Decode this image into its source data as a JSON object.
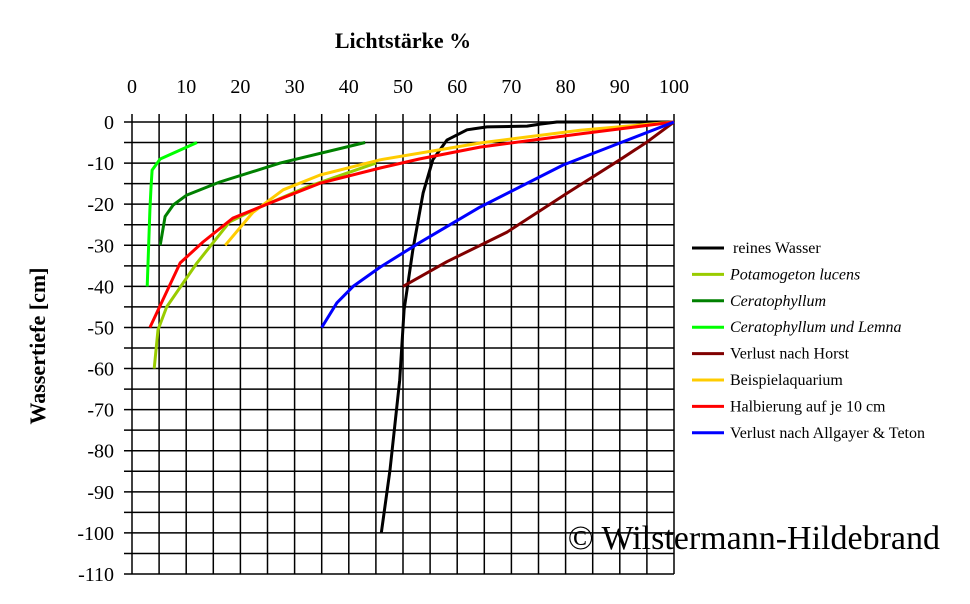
{
  "chart_data": {
    "type": "line",
    "title": "",
    "xlabel": "Lichtstärke %",
    "ylabel": "Wassertiefe [cm]",
    "xlim": [
      0,
      100
    ],
    "ylim": [
      -110,
      0
    ],
    "x_ticks": [
      "0",
      "10",
      "20",
      "30",
      "40",
      "50",
      "60",
      "70",
      "80",
      "90",
      "100"
    ],
    "y_ticks": [
      "0",
      "-10",
      "-20",
      "-30",
      "-40",
      "-50",
      "-60",
      "-70",
      "-80",
      "-90",
      "-100",
      "-110"
    ],
    "x_axis_position": "top",
    "grid": true,
    "legend_position": "right",
    "annotation": "© Wilstermann-Hildebrand",
    "series": [
      {
        "name": "reines Wasser",
        "italic": false,
        "color": "#000000",
        "points": [
          [
            46,
            -100
          ],
          [
            47.6,
            -84.7
          ],
          [
            49.4,
            -62.8
          ],
          [
            50.2,
            -45.7
          ],
          [
            51.8,
            -31.2
          ],
          [
            53.7,
            -17.3
          ],
          [
            55.5,
            -9.2
          ],
          [
            58.1,
            -4.4
          ],
          [
            61.8,
            -1.9
          ],
          [
            65.5,
            -1.2
          ],
          [
            72.9,
            -1
          ],
          [
            75.3,
            -0.5
          ],
          [
            78.4,
            0
          ],
          [
            100,
            0
          ]
        ]
      },
      {
        "name": "Potamogeton lucens",
        "italic": true,
        "color": "#99cc00",
        "points": [
          [
            4.1,
            -60
          ],
          [
            4.8,
            -50.6
          ],
          [
            6.4,
            -45
          ],
          [
            12,
            -34.3
          ],
          [
            18,
            -24.3
          ],
          [
            23.6,
            -20.7
          ],
          [
            32.3,
            -15.8
          ],
          [
            45,
            -10
          ]
        ]
      },
      {
        "name": "Ceratophyllum",
        "italic": true,
        "color": "#008000",
        "points": [
          [
            5.2,
            -30
          ],
          [
            6.1,
            -23
          ],
          [
            7.6,
            -20.2
          ],
          [
            10.1,
            -17.8
          ],
          [
            16.2,
            -14.6
          ],
          [
            27.3,
            -10
          ],
          [
            43,
            -5
          ]
        ]
      },
      {
        "name": "Ceratophyllum und Lemna",
        "italic": true,
        "color": "#00ff00",
        "points": [
          [
            2.8,
            -40
          ],
          [
            3.3,
            -21.4
          ],
          [
            3.5,
            -16
          ],
          [
            3.7,
            -11.7
          ],
          [
            5.2,
            -9
          ],
          [
            12,
            -5
          ]
        ]
      },
      {
        "name": "Verlust nach Horst",
        "italic": false,
        "color": "#800000",
        "points": [
          [
            50,
            -40
          ],
          [
            58.1,
            -34
          ],
          [
            69.2,
            -26.8
          ],
          [
            80.3,
            -17.3
          ],
          [
            90,
            -9.2
          ],
          [
            95,
            -4.9
          ],
          [
            100,
            0
          ]
        ]
      },
      {
        "name": "Beispielaquarium",
        "italic": false,
        "color": "#ffcc00",
        "points": [
          [
            17.2,
            -30
          ],
          [
            22.3,
            -22
          ],
          [
            27.9,
            -16.5
          ],
          [
            34.7,
            -12.9
          ],
          [
            45.8,
            -9.2
          ],
          [
            64.2,
            -5.1
          ],
          [
            82.7,
            -2
          ],
          [
            100,
            0
          ]
        ]
      },
      {
        "name": "Halbierung auf je 10 cm",
        "italic": false,
        "color": "#ff0000",
        "points": [
          [
            3.3,
            -50
          ],
          [
            8.9,
            -34.3
          ],
          [
            13.1,
            -29.2
          ],
          [
            18.6,
            -23.4
          ],
          [
            25.5,
            -19.7
          ],
          [
            34.7,
            -14.9
          ],
          [
            45.8,
            -11.2
          ],
          [
            53,
            -9
          ],
          [
            64.2,
            -6.1
          ],
          [
            82.7,
            -2.9
          ],
          [
            100,
            0
          ]
        ]
      },
      {
        "name": "Verlust nach Allgayer & Teton",
        "italic": false,
        "color": "#0000ff",
        "points": [
          [
            35,
            -50
          ],
          [
            37.8,
            -44
          ],
          [
            40.8,
            -40
          ],
          [
            45.8,
            -35.3
          ],
          [
            53,
            -29.4
          ],
          [
            64.2,
            -20.7
          ],
          [
            79.5,
            -10.5
          ],
          [
            90,
            -5.1
          ],
          [
            100,
            0
          ]
        ]
      }
    ]
  }
}
